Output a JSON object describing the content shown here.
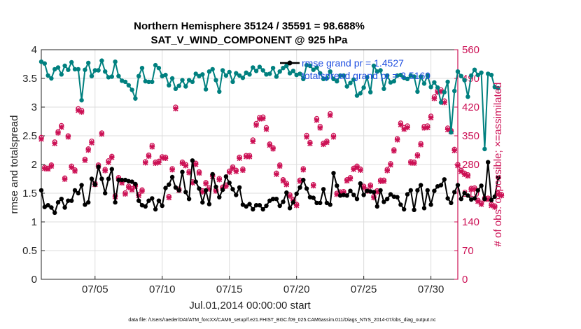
{
  "chart_data": {
    "type": "line",
    "title": [
      "Northern Hemisphere 35124 / 35591 = 98.688%",
      "SAT_V_WIND_COMPONENT @ 925 hPa"
    ],
    "xlabel": "Jul.01,2014 00:00:00 start",
    "ylabel_left": "rmse and totalspread",
    "ylabel_right": "# of obs: o=possible; ×=assimilated",
    "x_day_start": 1.0,
    "x_day_end": 32.0,
    "x_step_days": 0.25,
    "x_ticks": [
      {
        "day": 5,
        "label": "07/05"
      },
      {
        "day": 10,
        "label": "07/10"
      },
      {
        "day": 15,
        "label": "07/15"
      },
      {
        "day": 20,
        "label": "07/20"
      },
      {
        "day": 25,
        "label": "07/25"
      },
      {
        "day": 30,
        "label": "07/30"
      }
    ],
    "ylim_left": [
      0,
      4
    ],
    "yticks_left": [
      "0",
      "0.5",
      "1",
      "1.5",
      "2",
      "2.5",
      "3",
      "3.5",
      "4"
    ],
    "ylim_right": [
      0,
      560
    ],
    "yticks_right": [
      "0",
      "70",
      "140",
      "210",
      "280",
      "350",
      "420",
      "490",
      "560"
    ],
    "grid": true,
    "legend": [
      "rmse grand pr = 1.4527",
      "totalspread grand pr = 3.5169"
    ],
    "footer": "data file: /Users/raeder/DAI/ATM_forcXX/CAM6_setup/f.e21.FHIST_BGC.f09_025.CAM6assim.011/Diags_NTrS_2014-07/obs_diag_output.nc",
    "colors": {
      "rmse": "#000000",
      "spread": "#00807f",
      "obs": "#cc1155",
      "legend_text": "#1f4fe0"
    },
    "series": [
      {
        "name": "rmse",
        "axis": "left",
        "values": [
          1.55,
          1.26,
          1.29,
          1.25,
          1.16,
          1.34,
          1.4,
          1.25,
          1.37,
          1.37,
          1.55,
          1.5,
          1.64,
          1.3,
          1.34,
          1.75,
          1.65,
          1.96,
          1.75,
          1.5,
          1.75,
          1.92,
          1.34,
          1.73,
          1.73,
          1.73,
          1.71,
          1.7,
          1.66,
          1.37,
          1.29,
          1.27,
          1.37,
          1.41,
          1.22,
          1.37,
          1.28,
          1.59,
          1.65,
          1.78,
          1.6,
          1.55,
          1.87,
          1.52,
          1.4,
          2.07,
          1.7,
          1.58,
          1.34,
          1.55,
          1.31,
          1.83,
          1.61,
          1.43,
          1.56,
          1.79,
          1.68,
          1.57,
          1.47,
          1.6,
          1.3,
          1.27,
          1.31,
          1.22,
          1.29,
          1.29,
          1.22,
          1.28,
          1.37,
          1.4,
          1.4,
          1.28,
          1.35,
          1.51,
          1.24,
          1.34,
          1.49,
          1.6,
          1.73,
          1.58,
          1.43,
          1.42,
          1.33,
          1.33,
          1.57,
          1.33,
          1.3,
          1.85,
          1.63,
          1.46,
          1.47,
          1.46,
          1.54,
          1.47,
          1.4,
          1.67,
          1.47,
          1.54,
          1.53,
          1.52,
          1.27,
          1.55,
          1.35,
          1.4,
          1.48,
          1.44,
          1.43,
          1.3,
          1.22,
          1.48,
          1.55,
          1.21,
          1.55,
          1.64,
          1.24,
          1.55,
          1.3,
          1.54,
          1.62,
          1.64,
          1.74,
          1.41,
          1.33,
          1.52,
          1.64,
          1.4,
          1.5,
          1.46,
          1.39,
          1.41,
          1.55,
          1.63,
          1.4,
          2.04,
          1.38,
          1.44,
          1.77
        ]
      },
      {
        "name": "totalspread",
        "axis": "left",
        "values": [
          3.79,
          3.76,
          3.55,
          3.5,
          3.66,
          3.69,
          3.57,
          3.72,
          3.65,
          3.78,
          3.66,
          3.66,
          3.12,
          3.65,
          3.77,
          3.54,
          3.64,
          3.64,
          3.81,
          3.62,
          3.52,
          3.53,
          3.79,
          3.54,
          3.46,
          3.44,
          3.38,
          3.3,
          3.15,
          3.54,
          3.68,
          3.45,
          3.44,
          3.44,
          3.73,
          3.68,
          3.54,
          3.56,
          3.38,
          3.5,
          3.32,
          3.37,
          3.47,
          3.36,
          3.47,
          3.44,
          3.58,
          3.54,
          3.57,
          3.31,
          3.62,
          3.66,
          3.47,
          3.27,
          3.64,
          3.55,
          3.61,
          3.44,
          3.59,
          3.55,
          3.51,
          3.6,
          3.57,
          3.69,
          3.63,
          3.7,
          3.64,
          3.57,
          3.58,
          3.68,
          3.53,
          3.62,
          3.68,
          3.72,
          3.59,
          3.63,
          3.56,
          3.58,
          3.49,
          3.73,
          3.72,
          3.65,
          3.69,
          3.59,
          3.49,
          3.5,
          3.62,
          3.49,
          3.45,
          3.55,
          3.55,
          3.36,
          3.42,
          3.48,
          3.2,
          3.24,
          3.34,
          3.52,
          3.26,
          3.72,
          3.62,
          3.64,
          3.32,
          3.55,
          3.43,
          3.45,
          3.55,
          3.56,
          3.51,
          3.49,
          3.55,
          3.53,
          3.27,
          3.53,
          3.41,
          3.55,
          3.35,
          3.43,
          3.34,
          3.08,
          3.26,
          3.44,
          2.56,
          3.28,
          3.62,
          3.54,
          3.47,
          3.18,
          3.55,
          3.65,
          3.56,
          3.6,
          2.27,
          3.58,
          3.56,
          3.35,
          3.33
        ]
      },
      {
        "name": "obs_possible",
        "axis": "right",
        "values": [
          346,
          273,
          271,
          279,
          335,
          360,
          375,
          247,
          350,
          276,
          267,
          416,
          412,
          293,
          318,
          337,
          234,
          279,
          357,
          268,
          289,
          300,
          204,
          248,
          238,
          211,
          227,
          221,
          230,
          207,
          218,
          287,
          303,
          327,
          286,
          288,
          299,
          298,
          202,
          270,
          420,
          220,
          286,
          280,
          263,
          238,
          283,
          262,
          216,
          236,
          223,
          254,
          218,
          246,
          225,
          230,
          264,
          274,
          266,
          298,
          269,
          302,
          302,
          340,
          380,
          395,
          396,
          370,
          330,
          321,
          259,
          279,
          243,
          234,
          206,
          195,
          183,
          242,
          270,
          351,
          334,
          231,
          392,
          373,
          332,
          337,
          404,
          351,
          210,
          213,
          214,
          243,
          248,
          271,
          276,
          269,
          227,
          218,
          230,
          202,
          216,
          242,
          242,
          268,
          282,
          316,
          343,
          381,
          370,
          374,
          287,
          286,
          304,
          331,
          373,
          374,
          398,
          445,
          460,
          462,
          435,
          369,
          363,
          317,
          280,
          266,
          259,
          255,
          222,
          223,
          193,
          186,
          198,
          198,
          183,
          179,
          210,
          207
        ]
      },
      {
        "name": "obs_assimilated",
        "axis": "right",
        "values": [
          342,
          270,
          269,
          276,
          331,
          357,
          371,
          244,
          347,
          273,
          264,
          412,
          408,
          290,
          315,
          333,
          231,
          276,
          354,
          265,
          285,
          297,
          201,
          245,
          235,
          208,
          224,
          218,
          227,
          204,
          215,
          284,
          300,
          323,
          283,
          285,
          296,
          295,
          199,
          267,
          416,
          217,
          283,
          277,
          260,
          235,
          280,
          259,
          213,
          233,
          220,
          251,
          215,
          243,
          222,
          227,
          261,
          271,
          263,
          295,
          266,
          299,
          299,
          336,
          376,
          391,
          392,
          366,
          327,
          318,
          256,
          276,
          240,
          231,
          203,
          192,
          180,
          239,
          267,
          347,
          331,
          228,
          388,
          369,
          329,
          334,
          400,
          347,
          207,
          210,
          211,
          240,
          245,
          268,
          273,
          266,
          224,
          215,
          227,
          199,
          213,
          239,
          239,
          265,
          279,
          313,
          340,
          377,
          366,
          370,
          284,
          283,
          301,
          328,
          369,
          370,
          394,
          441,
          456,
          458,
          431,
          365,
          360,
          314,
          277,
          263,
          256,
          252,
          219,
          220,
          190,
          183,
          195,
          195,
          180,
          176,
          207,
          204
        ]
      }
    ]
  }
}
